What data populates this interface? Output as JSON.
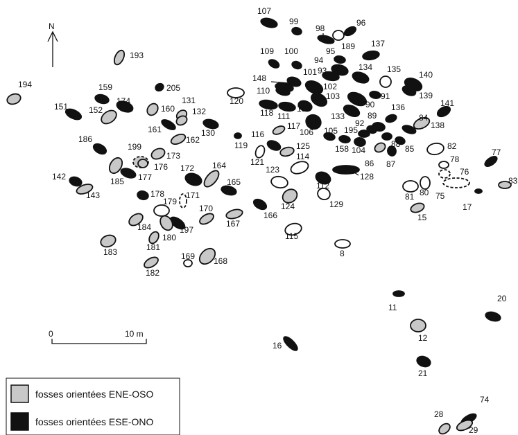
{
  "north_label": "N",
  "scale": {
    "start_label": "0",
    "end_label": "10 m"
  },
  "legend": {
    "items": [
      {
        "label": "fosses orientées ENE-OSO",
        "fill": "#c8c8c8"
      },
      {
        "label": "fosses orientées ESE-ONO",
        "fill": "#111111"
      }
    ]
  },
  "colors": {
    "grey": "#c8c8c8",
    "black": "#111111",
    "white": "#ffffff",
    "stroke": "#111111"
  },
  "pits": [
    {
      "id": "107",
      "type": "black"
    },
    {
      "id": "99",
      "type": "black"
    },
    {
      "id": "98",
      "type": "black"
    },
    {
      "id": "96",
      "type": "black"
    },
    {
      "id": "189",
      "type": "white"
    },
    {
      "id": "137",
      "type": "black"
    },
    {
      "id": "193",
      "type": "grey"
    },
    {
      "id": "109",
      "type": "black"
    },
    {
      "id": "100",
      "type": "black"
    },
    {
      "id": "95",
      "type": "black"
    },
    {
      "id": "94",
      "type": "black"
    },
    {
      "id": "93",
      "type": "black"
    },
    {
      "id": "134",
      "type": "black"
    },
    {
      "id": "135",
      "type": "white"
    },
    {
      "id": "140",
      "type": "black"
    },
    {
      "id": "148",
      "type": "black"
    },
    {
      "id": "101",
      "type": "black"
    },
    {
      "id": "102",
      "type": "black"
    },
    {
      "id": "194",
      "type": "grey"
    },
    {
      "id": "159",
      "type": "black"
    },
    {
      "id": "205",
      "type": "black"
    },
    {
      "id": "120",
      "type": "white"
    },
    {
      "id": "110",
      "type": "black"
    },
    {
      "id": "103",
      "type": "black"
    },
    {
      "id": "91",
      "type": "black"
    },
    {
      "id": "139",
      "type": "black"
    },
    {
      "id": "131",
      "type": "grey"
    },
    {
      "id": "174",
      "type": "black"
    },
    {
      "id": "151",
      "type": "black"
    },
    {
      "id": "152",
      "type": "grey"
    },
    {
      "id": "160",
      "type": "grey"
    },
    {
      "id": "132",
      "type": "grey"
    },
    {
      "id": "118",
      "type": "black"
    },
    {
      "id": "111",
      "type": "black"
    },
    {
      "id": "156",
      "type": "black"
    },
    {
      "id": "90",
      "type": "black"
    },
    {
      "id": "136",
      "type": "black"
    },
    {
      "id": "141",
      "type": "black"
    },
    {
      "id": "89",
      "type": "black"
    },
    {
      "id": "133",
      "type": "black"
    },
    {
      "id": "161",
      "type": "black"
    },
    {
      "id": "130",
      "type": "black"
    },
    {
      "id": "117",
      "type": "grey"
    },
    {
      "id": "138",
      "type": "grey"
    },
    {
      "id": "92",
      "type": "black"
    },
    {
      "id": "84",
      "type": "black"
    },
    {
      "id": "106",
      "type": "black"
    },
    {
      "id": "195",
      "type": "black"
    },
    {
      "id": "105",
      "type": "black"
    },
    {
      "id": "116",
      "type": "black"
    },
    {
      "id": "162",
      "type": "grey"
    },
    {
      "id": "186",
      "type": "black"
    },
    {
      "id": "119",
      "type": "black"
    },
    {
      "id": "125",
      "type": "grey"
    },
    {
      "id": "158",
      "type": "black"
    },
    {
      "id": "104",
      "type": "black"
    },
    {
      "id": "88",
      "type": "black"
    },
    {
      "id": "85",
      "type": "black"
    },
    {
      "id": "82",
      "type": "white"
    },
    {
      "id": "199",
      "type": "grey"
    },
    {
      "id": "173",
      "type": "grey"
    },
    {
      "id": "121",
      "type": "white"
    },
    {
      "id": "114",
      "type": "white"
    },
    {
      "id": "86",
      "type": "grey"
    },
    {
      "id": "87",
      "type": "black"
    },
    {
      "id": "77",
      "type": "black"
    },
    {
      "id": "176",
      "type": "grey"
    },
    {
      "id": "78",
      "type": "white"
    },
    {
      "id": "185",
      "type": "grey"
    },
    {
      "id": "172",
      "type": "black"
    },
    {
      "id": "164",
      "type": "grey"
    },
    {
      "id": "123",
      "type": "white"
    },
    {
      "id": "177",
      "type": "black"
    },
    {
      "id": "142",
      "type": "black"
    },
    {
      "id": "128",
      "type": "black"
    },
    {
      "id": "76",
      "type": "white"
    },
    {
      "id": "83",
      "type": "grey"
    },
    {
      "id": "112",
      "type": "black"
    },
    {
      "id": "165",
      "type": "black"
    },
    {
      "id": "143",
      "type": "grey"
    },
    {
      "id": "81",
      "type": "white"
    },
    {
      "id": "80",
      "type": "white"
    },
    {
      "id": "75",
      "type": "white"
    },
    {
      "id": "178",
      "type": "black"
    },
    {
      "id": "171",
      "type": "white"
    },
    {
      "id": "124",
      "type": "grey"
    },
    {
      "id": "129",
      "type": "white"
    },
    {
      "id": "17",
      "type": "black"
    },
    {
      "id": "179",
      "type": "white"
    },
    {
      "id": "166",
      "type": "black"
    },
    {
      "id": "15",
      "type": "grey"
    },
    {
      "id": "170",
      "type": "grey"
    },
    {
      "id": "184",
      "type": "grey"
    },
    {
      "id": "167",
      "type": "grey"
    },
    {
      "id": "197",
      "type": "black"
    },
    {
      "id": "115",
      "type": "white"
    },
    {
      "id": "180",
      "type": "grey"
    },
    {
      "id": "183",
      "type": "grey"
    },
    {
      "id": "181",
      "type": "grey"
    },
    {
      "id": "8",
      "type": "white"
    },
    {
      "id": "169",
      "type": "white"
    },
    {
      "id": "168",
      "type": "grey"
    },
    {
      "id": "182",
      "type": "grey"
    },
    {
      "id": "11",
      "type": "black"
    },
    {
      "id": "20",
      "type": "black"
    },
    {
      "id": "12",
      "type": "grey"
    },
    {
      "id": "16",
      "type": "black"
    },
    {
      "id": "21",
      "type": "black"
    },
    {
      "id": "74",
      "type": "black"
    },
    {
      "id": "28",
      "type": "grey"
    },
    {
      "id": "29",
      "type": "grey"
    }
  ]
}
